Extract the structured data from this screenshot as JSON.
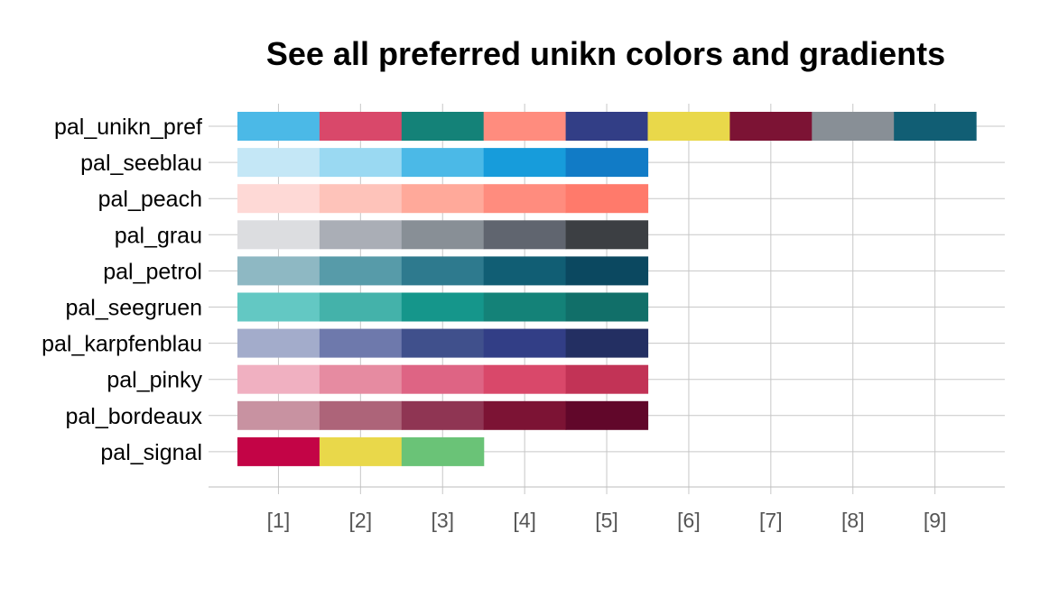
{
  "chart_data": {
    "type": "heatmap",
    "title": "See all preferred unikn colors and gradients",
    "xlabel": "",
    "ylabel": "",
    "x_ticks": [
      "[1]",
      "[2]",
      "[3]",
      "[4]",
      "[5]",
      "[6]",
      "[7]",
      "[8]",
      "[9]"
    ],
    "grid": true,
    "legend": "none",
    "palettes": [
      {
        "name": "pal_unikn_pref",
        "colors": [
          "#4BB9E7",
          "#D9486A",
          "#148278",
          "#FF8C7E",
          "#323E86",
          "#E9D84A",
          "#7C1334",
          "#888F96",
          "#115E74"
        ]
      },
      {
        "name": "pal_seeblau",
        "colors": [
          "#C4E7F6",
          "#9AD9F2",
          "#4BB9E7",
          "#179CDB",
          "#117BC6"
        ]
      },
      {
        "name": "pal_peach",
        "colors": [
          "#FED9D6",
          "#FEC3BA",
          "#FFA99A",
          "#FF8C7E",
          "#FF7A6B"
        ]
      },
      {
        "name": "pal_grau",
        "colors": [
          "#DCDDE0",
          "#AAAEB6",
          "#888F96",
          "#60656F",
          "#3C3F43"
        ]
      },
      {
        "name": "pal_petrol",
        "colors": [
          "#8EB8C3",
          "#579BA9",
          "#2E7A8E",
          "#115E74",
          "#0B4860"
        ]
      },
      {
        "name": "pal_seegruen",
        "colors": [
          "#63C8C3",
          "#44B2AA",
          "#15968B",
          "#148278",
          "#116F69"
        ]
      },
      {
        "name": "pal_karpfenblau",
        "colors": [
          "#A3ACCB",
          "#6E79AC",
          "#40508C",
          "#323E86",
          "#232F62"
        ]
      },
      {
        "name": "pal_pinky",
        "colors": [
          "#F0B0C1",
          "#E68BA1",
          "#DE6484",
          "#D9486A",
          "#C23356"
        ]
      },
      {
        "name": "pal_bordeaux",
        "colors": [
          "#C892A1",
          "#AD6479",
          "#8F3553",
          "#7C1334",
          "#61072A"
        ]
      },
      {
        "name": "pal_signal",
        "colors": [
          "#C30446",
          "#E9D84A",
          "#6AC377"
        ]
      }
    ]
  }
}
